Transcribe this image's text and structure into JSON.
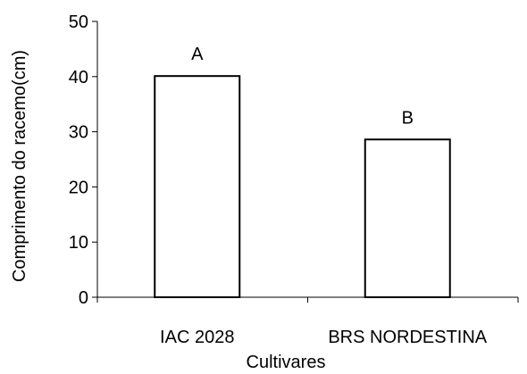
{
  "chart_data": {
    "type": "bar",
    "categories": [
      "IAC 2028",
      "BRS NORDESTINA"
    ],
    "values": [
      40.1,
      28.6
    ],
    "data_labels": [
      "A",
      "B"
    ],
    "title": "",
    "xlabel": "Cultivares",
    "ylabel": "Comprimento do racemo(cm)",
    "ylim": [
      0,
      50
    ],
    "yticks": [
      0,
      10,
      20,
      30,
      40,
      50
    ],
    "grid": false,
    "legend": "none",
    "bar_fill": "#ffffff",
    "bar_stroke": "#000000"
  }
}
